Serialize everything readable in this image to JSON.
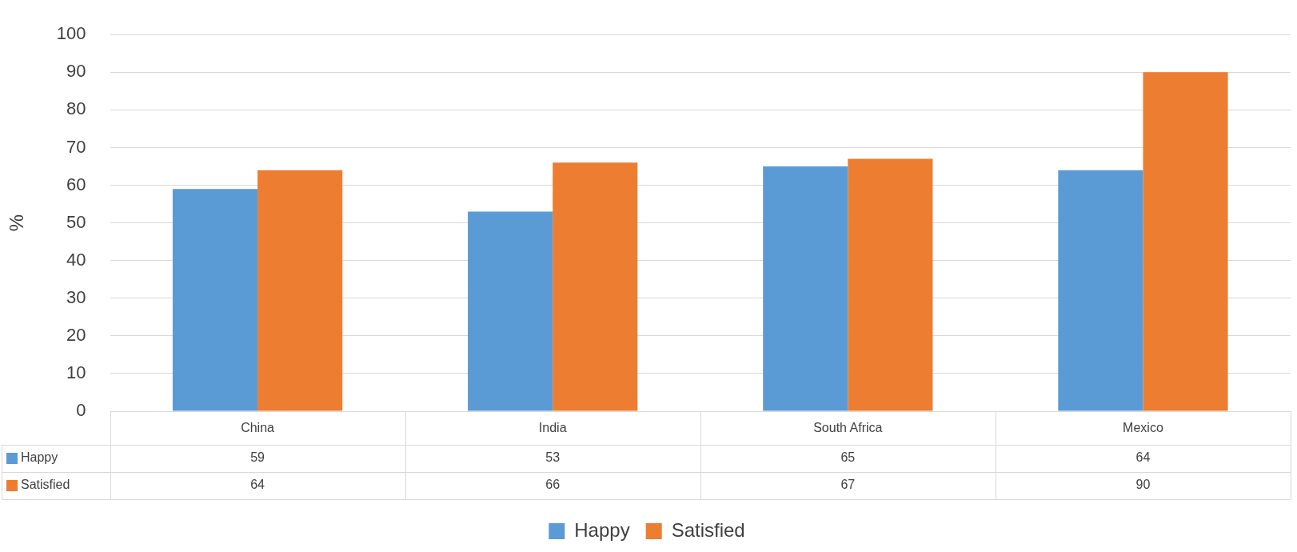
{
  "chart_data": {
    "type": "bar",
    "ylabel": "%",
    "categories": [
      "China",
      "India",
      "South Africa",
      "Mexico"
    ],
    "series": [
      {
        "name": "Happy",
        "color": "#5b9bd5",
        "values": [
          59,
          53,
          65,
          64
        ]
      },
      {
        "name": "Satisfied",
        "color": "#ed7d31",
        "values": [
          64,
          66,
          67,
          90
        ]
      }
    ],
    "ylim": [
      0,
      100
    ],
    "yticks": [
      0,
      10,
      20,
      30,
      40,
      50,
      60,
      70,
      80,
      90,
      100
    ],
    "grid": "y",
    "legend": "bottom",
    "data_labels": true
  }
}
